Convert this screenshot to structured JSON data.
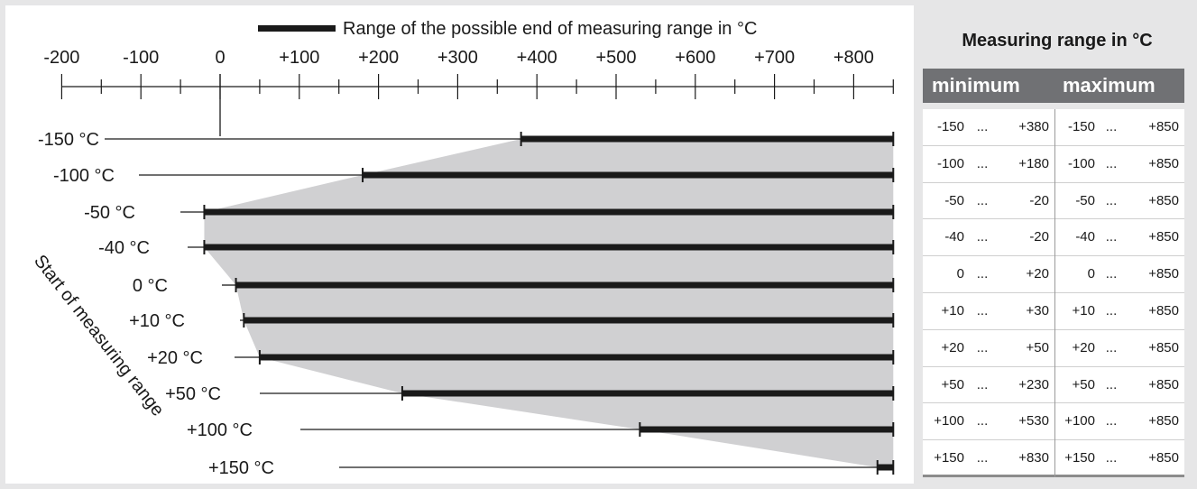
{
  "chart_data": {
    "type": "range-bar",
    "legend": "Range of the possible end of measuring range in °C",
    "x_ticks": [
      "-200",
      "-100",
      "0",
      "+100",
      "+200",
      "+300",
      "+400",
      "+500",
      "+600",
      "+700",
      "+800"
    ],
    "xlim": [
      -200,
      850
    ],
    "y_axis_label": "Start of measuring range",
    "series": [
      {
        "label": "-150 °C",
        "start": -150,
        "end_min": 380,
        "end_max": 850
      },
      {
        "label": "-100 °C",
        "start": -100,
        "end_min": 180,
        "end_max": 850
      },
      {
        "label": "-50 °C",
        "start": -50,
        "end_min": -20,
        "end_max": 850
      },
      {
        "label": "-40 °C",
        "start": -40,
        "end_min": -20,
        "end_max": 850
      },
      {
        "label": "0 °C",
        "start": 0,
        "end_min": 20,
        "end_max": 850
      },
      {
        "label": "+10 °C",
        "start": 10,
        "end_min": 30,
        "end_max": 850
      },
      {
        "label": "+20 °C",
        "start": 20,
        "end_min": 50,
        "end_max": 850
      },
      {
        "label": "+50 °C",
        "start": 50,
        "end_min": 230,
        "end_max": 850
      },
      {
        "label": "+100 °C",
        "start": 100,
        "end_min": 530,
        "end_max": 850
      },
      {
        "label": "+150 °C",
        "start": 150,
        "end_min": 830,
        "end_max": 850
      }
    ],
    "colors": {
      "bar": "#1a1a1a",
      "shade": "#d0d0d2",
      "line": "#1a1a1a"
    }
  },
  "table": {
    "title": "Measuring range in °C",
    "headers": [
      "minimum",
      "maximum"
    ],
    "dots": "...",
    "rows": [
      {
        "min_lo": "-150",
        "min_hi": "+380",
        "max_lo": "-150",
        "max_hi": "+850"
      },
      {
        "min_lo": "-100",
        "min_hi": "+180",
        "max_lo": "-100",
        "max_hi": "+850"
      },
      {
        "min_lo": "-50",
        "min_hi": "-20",
        "max_lo": "-50",
        "max_hi": "+850"
      },
      {
        "min_lo": "-40",
        "min_hi": "-20",
        "max_lo": "-40",
        "max_hi": "+850"
      },
      {
        "min_lo": "0",
        "min_hi": "+20",
        "max_lo": "0",
        "max_hi": "+850"
      },
      {
        "min_lo": "+10",
        "min_hi": "+30",
        "max_lo": "+10",
        "max_hi": "+850"
      },
      {
        "min_lo": "+20",
        "min_hi": "+50",
        "max_lo": "+20",
        "max_hi": "+850"
      },
      {
        "min_lo": "+50",
        "min_hi": "+230",
        "max_lo": "+50",
        "max_hi": "+850"
      },
      {
        "min_lo": "+100",
        "min_hi": "+530",
        "max_lo": "+100",
        "max_hi": "+850"
      },
      {
        "min_lo": "+150",
        "min_hi": "+830",
        "max_lo": "+150",
        "max_hi": "+850"
      }
    ],
    "header_color": "#707174"
  }
}
